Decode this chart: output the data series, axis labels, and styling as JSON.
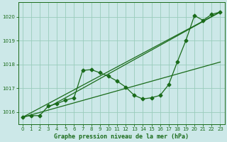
{
  "title": "Graphe pression niveau de la mer (hPa)",
  "bg_color": "#cce8e8",
  "grid_color": "#99ccbb",
  "line_color": "#1a6b1a",
  "xlim": [
    -0.5,
    23.5
  ],
  "ylim": [
    1015.5,
    1020.6
  ],
  "yticks": [
    1016,
    1017,
    1018,
    1019,
    1020
  ],
  "xticks": [
    0,
    1,
    2,
    3,
    4,
    5,
    6,
    7,
    8,
    9,
    10,
    11,
    12,
    13,
    14,
    15,
    16,
    17,
    18,
    19,
    20,
    21,
    22,
    23
  ],
  "data_x": [
    0,
    1,
    2,
    3,
    4,
    5,
    6,
    7,
    8,
    9,
    10,
    11,
    12,
    13,
    14,
    15,
    16,
    17,
    18,
    19,
    20,
    21,
    22,
    23
  ],
  "data_y": [
    1015.8,
    1015.85,
    1015.85,
    1016.25,
    1016.35,
    1016.5,
    1016.6,
    1017.75,
    1017.78,
    1017.65,
    1017.5,
    1017.3,
    1017.05,
    1016.7,
    1016.55,
    1016.6,
    1016.7,
    1017.15,
    1018.1,
    1019.0,
    1020.05,
    1019.85,
    1020.1,
    1020.2
  ],
  "trend1_x": [
    0,
    23
  ],
  "trend1_y": [
    1015.78,
    1020.2
  ],
  "trend2_x": [
    0,
    23
  ],
  "trend2_y": [
    1015.78,
    1018.1
  ],
  "trend3_x": [
    3,
    23
  ],
  "trend3_y": [
    1016.2,
    1020.2
  ]
}
